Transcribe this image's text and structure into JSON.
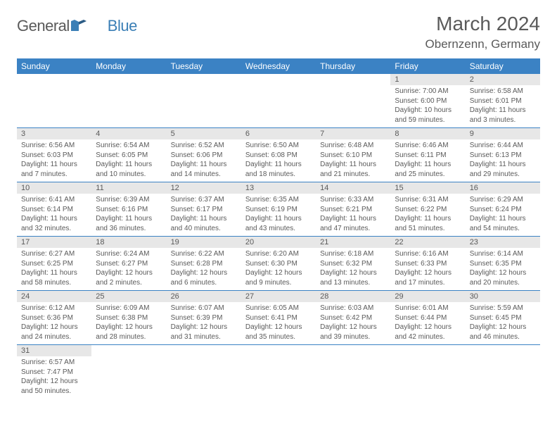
{
  "logo": {
    "part1": "General",
    "part2": "Blue"
  },
  "title": "March 2024",
  "location": "Obernzenn, Germany",
  "colors": {
    "header_bg": "#3b82c4",
    "header_text": "#ffffff",
    "daynum_bg": "#e7e7e7",
    "text": "#5a5a5a",
    "rule": "#3b82c4",
    "logo_blue": "#3b7fb6"
  },
  "weekdays": [
    "Sunday",
    "Monday",
    "Tuesday",
    "Wednesday",
    "Thursday",
    "Friday",
    "Saturday"
  ],
  "weeks": [
    [
      null,
      null,
      null,
      null,
      null,
      {
        "n": "1",
        "sr": "Sunrise: 7:00 AM",
        "ss": "Sunset: 6:00 PM",
        "d1": "Daylight: 10 hours",
        "d2": "and 59 minutes."
      },
      {
        "n": "2",
        "sr": "Sunrise: 6:58 AM",
        "ss": "Sunset: 6:01 PM",
        "d1": "Daylight: 11 hours",
        "d2": "and 3 minutes."
      }
    ],
    [
      {
        "n": "3",
        "sr": "Sunrise: 6:56 AM",
        "ss": "Sunset: 6:03 PM",
        "d1": "Daylight: 11 hours",
        "d2": "and 7 minutes."
      },
      {
        "n": "4",
        "sr": "Sunrise: 6:54 AM",
        "ss": "Sunset: 6:05 PM",
        "d1": "Daylight: 11 hours",
        "d2": "and 10 minutes."
      },
      {
        "n": "5",
        "sr": "Sunrise: 6:52 AM",
        "ss": "Sunset: 6:06 PM",
        "d1": "Daylight: 11 hours",
        "d2": "and 14 minutes."
      },
      {
        "n": "6",
        "sr": "Sunrise: 6:50 AM",
        "ss": "Sunset: 6:08 PM",
        "d1": "Daylight: 11 hours",
        "d2": "and 18 minutes."
      },
      {
        "n": "7",
        "sr": "Sunrise: 6:48 AM",
        "ss": "Sunset: 6:10 PM",
        "d1": "Daylight: 11 hours",
        "d2": "and 21 minutes."
      },
      {
        "n": "8",
        "sr": "Sunrise: 6:46 AM",
        "ss": "Sunset: 6:11 PM",
        "d1": "Daylight: 11 hours",
        "d2": "and 25 minutes."
      },
      {
        "n": "9",
        "sr": "Sunrise: 6:44 AM",
        "ss": "Sunset: 6:13 PM",
        "d1": "Daylight: 11 hours",
        "d2": "and 29 minutes."
      }
    ],
    [
      {
        "n": "10",
        "sr": "Sunrise: 6:41 AM",
        "ss": "Sunset: 6:14 PM",
        "d1": "Daylight: 11 hours",
        "d2": "and 32 minutes."
      },
      {
        "n": "11",
        "sr": "Sunrise: 6:39 AM",
        "ss": "Sunset: 6:16 PM",
        "d1": "Daylight: 11 hours",
        "d2": "and 36 minutes."
      },
      {
        "n": "12",
        "sr": "Sunrise: 6:37 AM",
        "ss": "Sunset: 6:17 PM",
        "d1": "Daylight: 11 hours",
        "d2": "and 40 minutes."
      },
      {
        "n": "13",
        "sr": "Sunrise: 6:35 AM",
        "ss": "Sunset: 6:19 PM",
        "d1": "Daylight: 11 hours",
        "d2": "and 43 minutes."
      },
      {
        "n": "14",
        "sr": "Sunrise: 6:33 AM",
        "ss": "Sunset: 6:21 PM",
        "d1": "Daylight: 11 hours",
        "d2": "and 47 minutes."
      },
      {
        "n": "15",
        "sr": "Sunrise: 6:31 AM",
        "ss": "Sunset: 6:22 PM",
        "d1": "Daylight: 11 hours",
        "d2": "and 51 minutes."
      },
      {
        "n": "16",
        "sr": "Sunrise: 6:29 AM",
        "ss": "Sunset: 6:24 PM",
        "d1": "Daylight: 11 hours",
        "d2": "and 54 minutes."
      }
    ],
    [
      {
        "n": "17",
        "sr": "Sunrise: 6:27 AM",
        "ss": "Sunset: 6:25 PM",
        "d1": "Daylight: 11 hours",
        "d2": "and 58 minutes."
      },
      {
        "n": "18",
        "sr": "Sunrise: 6:24 AM",
        "ss": "Sunset: 6:27 PM",
        "d1": "Daylight: 12 hours",
        "d2": "and 2 minutes."
      },
      {
        "n": "19",
        "sr": "Sunrise: 6:22 AM",
        "ss": "Sunset: 6:28 PM",
        "d1": "Daylight: 12 hours",
        "d2": "and 6 minutes."
      },
      {
        "n": "20",
        "sr": "Sunrise: 6:20 AM",
        "ss": "Sunset: 6:30 PM",
        "d1": "Daylight: 12 hours",
        "d2": "and 9 minutes."
      },
      {
        "n": "21",
        "sr": "Sunrise: 6:18 AM",
        "ss": "Sunset: 6:32 PM",
        "d1": "Daylight: 12 hours",
        "d2": "and 13 minutes."
      },
      {
        "n": "22",
        "sr": "Sunrise: 6:16 AM",
        "ss": "Sunset: 6:33 PM",
        "d1": "Daylight: 12 hours",
        "d2": "and 17 minutes."
      },
      {
        "n": "23",
        "sr": "Sunrise: 6:14 AM",
        "ss": "Sunset: 6:35 PM",
        "d1": "Daylight: 12 hours",
        "d2": "and 20 minutes."
      }
    ],
    [
      {
        "n": "24",
        "sr": "Sunrise: 6:12 AM",
        "ss": "Sunset: 6:36 PM",
        "d1": "Daylight: 12 hours",
        "d2": "and 24 minutes."
      },
      {
        "n": "25",
        "sr": "Sunrise: 6:09 AM",
        "ss": "Sunset: 6:38 PM",
        "d1": "Daylight: 12 hours",
        "d2": "and 28 minutes."
      },
      {
        "n": "26",
        "sr": "Sunrise: 6:07 AM",
        "ss": "Sunset: 6:39 PM",
        "d1": "Daylight: 12 hours",
        "d2": "and 31 minutes."
      },
      {
        "n": "27",
        "sr": "Sunrise: 6:05 AM",
        "ss": "Sunset: 6:41 PM",
        "d1": "Daylight: 12 hours",
        "d2": "and 35 minutes."
      },
      {
        "n": "28",
        "sr": "Sunrise: 6:03 AM",
        "ss": "Sunset: 6:42 PM",
        "d1": "Daylight: 12 hours",
        "d2": "and 39 minutes."
      },
      {
        "n": "29",
        "sr": "Sunrise: 6:01 AM",
        "ss": "Sunset: 6:44 PM",
        "d1": "Daylight: 12 hours",
        "d2": "and 42 minutes."
      },
      {
        "n": "30",
        "sr": "Sunrise: 5:59 AM",
        "ss": "Sunset: 6:45 PM",
        "d1": "Daylight: 12 hours",
        "d2": "and 46 minutes."
      }
    ],
    [
      {
        "n": "31",
        "sr": "Sunrise: 6:57 AM",
        "ss": "Sunset: 7:47 PM",
        "d1": "Daylight: 12 hours",
        "d2": "and 50 minutes."
      },
      null,
      null,
      null,
      null,
      null,
      null
    ]
  ]
}
